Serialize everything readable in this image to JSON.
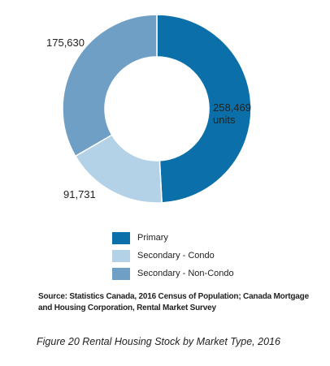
{
  "chart_data": {
    "type": "pie",
    "variant": "donut",
    "categories": [
      "Primary",
      "Secondary - Condo",
      "Secondary - Non-Condo"
    ],
    "values": [
      258469,
      91731,
      175630
    ],
    "value_labels": [
      "258,469\nunits",
      "91,731",
      "175,630"
    ],
    "colors": [
      "#0b70a9",
      "#b3d2e7",
      "#709fc5"
    ],
    "legend_position": "bottom",
    "title": ""
  },
  "legend": {
    "items": [
      {
        "label": "Primary",
        "color": "#0b70a9"
      },
      {
        "label": "Secondary - Condo",
        "color": "#b3d2e7"
      },
      {
        "label": "Secondary - Non-Condo",
        "color": "#709fc5"
      }
    ]
  },
  "source": "Source: Statistics Canada, 2016 Census of Population; Canada Mortgage and Housing Corporation, Rental Market Survey",
  "caption": "Figure 20 Rental Housing Stock by Market Type, 2016"
}
